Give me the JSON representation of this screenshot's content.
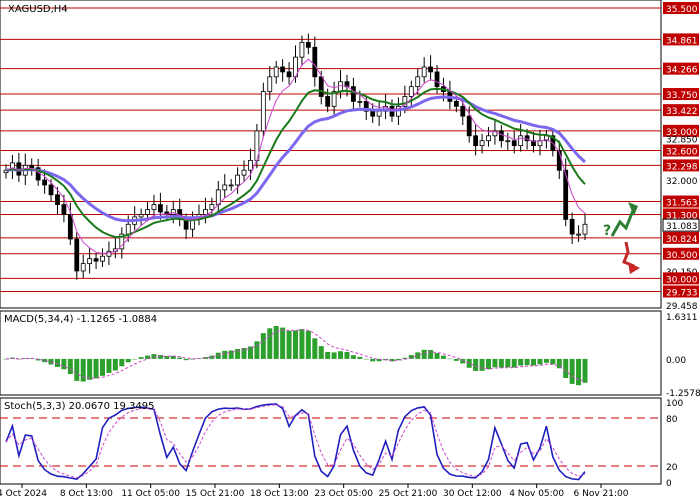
{
  "chart_data": {
    "type": "candlestick",
    "symbol_label": "XAGUSD,H4",
    "x_tick_labels": [
      "4 Oct 2024",
      "8 Oct 13:00",
      "11 Oct 05:00",
      "15 Oct 21:00",
      "18 Oct 13:00",
      "23 Oct 05:00",
      "25 Oct 21:00",
      "30 Oct 12:00",
      "4 Nov 05:00",
      "6 Nov 21:00"
    ],
    "price_panel": {
      "ylim": [
        29.458,
        35.5
      ],
      "tick_labels": [
        "35.500",
        "34.861",
        "34.266",
        "33.750",
        "33.422",
        "33.000",
        "32.850",
        "32.600",
        "32.298",
        "32.000",
        "31.563",
        "31.300",
        "31.083",
        "30.824",
        "30.500",
        "30.150",
        "30.000",
        "29.733",
        "29.458"
      ],
      "level_lines": [
        35.5,
        34.861,
        34.266,
        33.75,
        33.422,
        33.0,
        32.6,
        32.298,
        31.563,
        31.3,
        30.824,
        30.5,
        30.0,
        29.733
      ],
      "current_price": "31.083",
      "closes": [
        32.2,
        32.35,
        32.1,
        32.3,
        32.25,
        32.0,
        31.9,
        31.7,
        31.5,
        31.3,
        30.8,
        30.15,
        30.3,
        30.4,
        30.35,
        30.45,
        30.55,
        30.6,
        30.9,
        31.1,
        31.25,
        31.3,
        31.4,
        31.5,
        31.35,
        31.3,
        31.4,
        31.2,
        31.0,
        31.2,
        31.3,
        31.4,
        31.5,
        31.8,
        31.9,
        31.9,
        32.1,
        32.2,
        32.4,
        33.0,
        33.8,
        34.1,
        34.3,
        34.2,
        34.1,
        34.5,
        34.8,
        34.7,
        34.1,
        33.7,
        33.5,
        33.8,
        34.0,
        33.9,
        33.6,
        33.6,
        33.4,
        33.3,
        33.4,
        33.5,
        33.3,
        33.5,
        33.7,
        33.9,
        34.1,
        34.3,
        34.2,
        33.9,
        33.8,
        33.6,
        33.5,
        33.3,
        32.9,
        32.7,
        32.8,
        32.9,
        33.0,
        32.8,
        32.8,
        32.7,
        32.9,
        32.8,
        32.7,
        32.8,
        32.9,
        32.6,
        32.2,
        31.2,
        30.9,
        30.9,
        31.1
      ],
      "ma_fast": {
        "name": "",
        "color": "#cc44cc"
      },
      "ma_mid": {
        "name": "",
        "color": "#1a7a1a"
      },
      "ma_slow": {
        "name": "",
        "color": "#7b68ee"
      },
      "arrow_up_color": "#2e7d32",
      "arrow_down_color": "#c62828",
      "question_mark": "?"
    },
    "macd_panel": {
      "label": "MACD(5,34,4) -1.1265 -1.0884",
      "tick_labels": [
        "1.6311",
        "0.00",
        "-1.2578"
      ],
      "ylim": [
        -1.2578,
        1.6311
      ],
      "bar_color": "#2ca02c",
      "signal_color": "#cc44cc"
    },
    "stoch_panel": {
      "label": "Stoch(5,3,3) 20.0670 19.3495",
      "tick_labels": [
        "100",
        "80",
        "20",
        "0"
      ],
      "ylim": [
        0,
        100
      ],
      "levels": [
        80,
        20
      ],
      "main_color": "#1f1fbf",
      "signal_color": "#cc44cc",
      "level_color": "#cc0000"
    },
    "grid": false,
    "legend": "none"
  }
}
